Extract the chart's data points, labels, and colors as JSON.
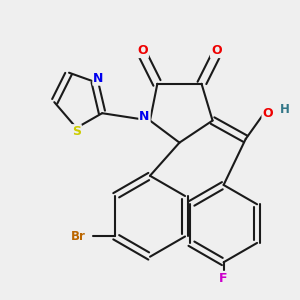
{
  "bg_color": "#efefef",
  "bond_color": "#1a1a1a",
  "bond_width": 1.5,
  "atom_colors": {
    "N": "#0000ee",
    "O": "#ee0000",
    "S": "#cccc00",
    "Br": "#bb6600",
    "F": "#cc00cc",
    "H": "#337788",
    "C": "#1a1a1a"
  }
}
